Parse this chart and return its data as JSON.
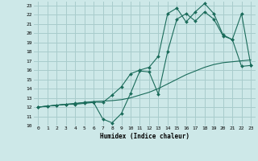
{
  "xlabel": "Humidex (Indice chaleur)",
  "bg_color": "#cde8e8",
  "grid_color": "#a8cccc",
  "line_color": "#1a6b5a",
  "xlim": [
    -0.5,
    23.5
  ],
  "ylim": [
    10,
    23.4
  ],
  "xticks": [
    0,
    1,
    2,
    3,
    4,
    5,
    6,
    7,
    8,
    9,
    10,
    11,
    12,
    13,
    14,
    15,
    16,
    17,
    18,
    19,
    20,
    21,
    22,
    23
  ],
  "yticks": [
    10,
    11,
    12,
    13,
    14,
    15,
    16,
    17,
    18,
    19,
    20,
    21,
    22,
    23
  ],
  "line1_x": [
    0,
    1,
    2,
    3,
    4,
    5,
    6,
    7,
    8,
    9,
    10,
    11,
    12,
    13,
    14,
    15,
    16,
    17,
    18,
    19,
    20,
    21,
    22,
    23
  ],
  "line1_y": [
    12,
    12.1,
    12.2,
    12.3,
    12.35,
    12.5,
    12.6,
    12.65,
    12.7,
    12.8,
    13.0,
    13.3,
    13.6,
    14.0,
    14.5,
    15.0,
    15.5,
    15.9,
    16.3,
    16.6,
    16.8,
    16.9,
    17.0,
    17.1
  ],
  "line2_x": [
    0,
    1,
    2,
    3,
    4,
    5,
    6,
    7,
    8,
    9,
    10,
    11,
    12,
    13,
    14,
    15,
    16,
    17,
    18,
    19,
    20,
    21,
    22,
    23
  ],
  "line2_y": [
    12,
    12.1,
    12.2,
    12.3,
    12.3,
    12.4,
    12.5,
    10.7,
    10.3,
    11.3,
    13.5,
    15.9,
    15.8,
    13.4,
    18.0,
    21.5,
    22.1,
    21.3,
    22.3,
    21.5,
    19.7,
    19.3,
    16.4,
    16.5
  ],
  "line3_x": [
    0,
    1,
    2,
    3,
    4,
    5,
    6,
    7,
    8,
    9,
    10,
    11,
    12,
    13,
    14,
    15,
    16,
    17,
    18,
    19,
    20,
    21,
    22,
    23
  ],
  "line3_y": [
    12,
    12.1,
    12.2,
    12.3,
    12.4,
    12.5,
    12.55,
    12.5,
    13.3,
    14.2,
    15.6,
    16.0,
    16.3,
    17.5,
    22.1,
    22.7,
    21.2,
    22.3,
    23.2,
    22.1,
    19.8,
    19.3,
    22.1,
    16.5
  ]
}
